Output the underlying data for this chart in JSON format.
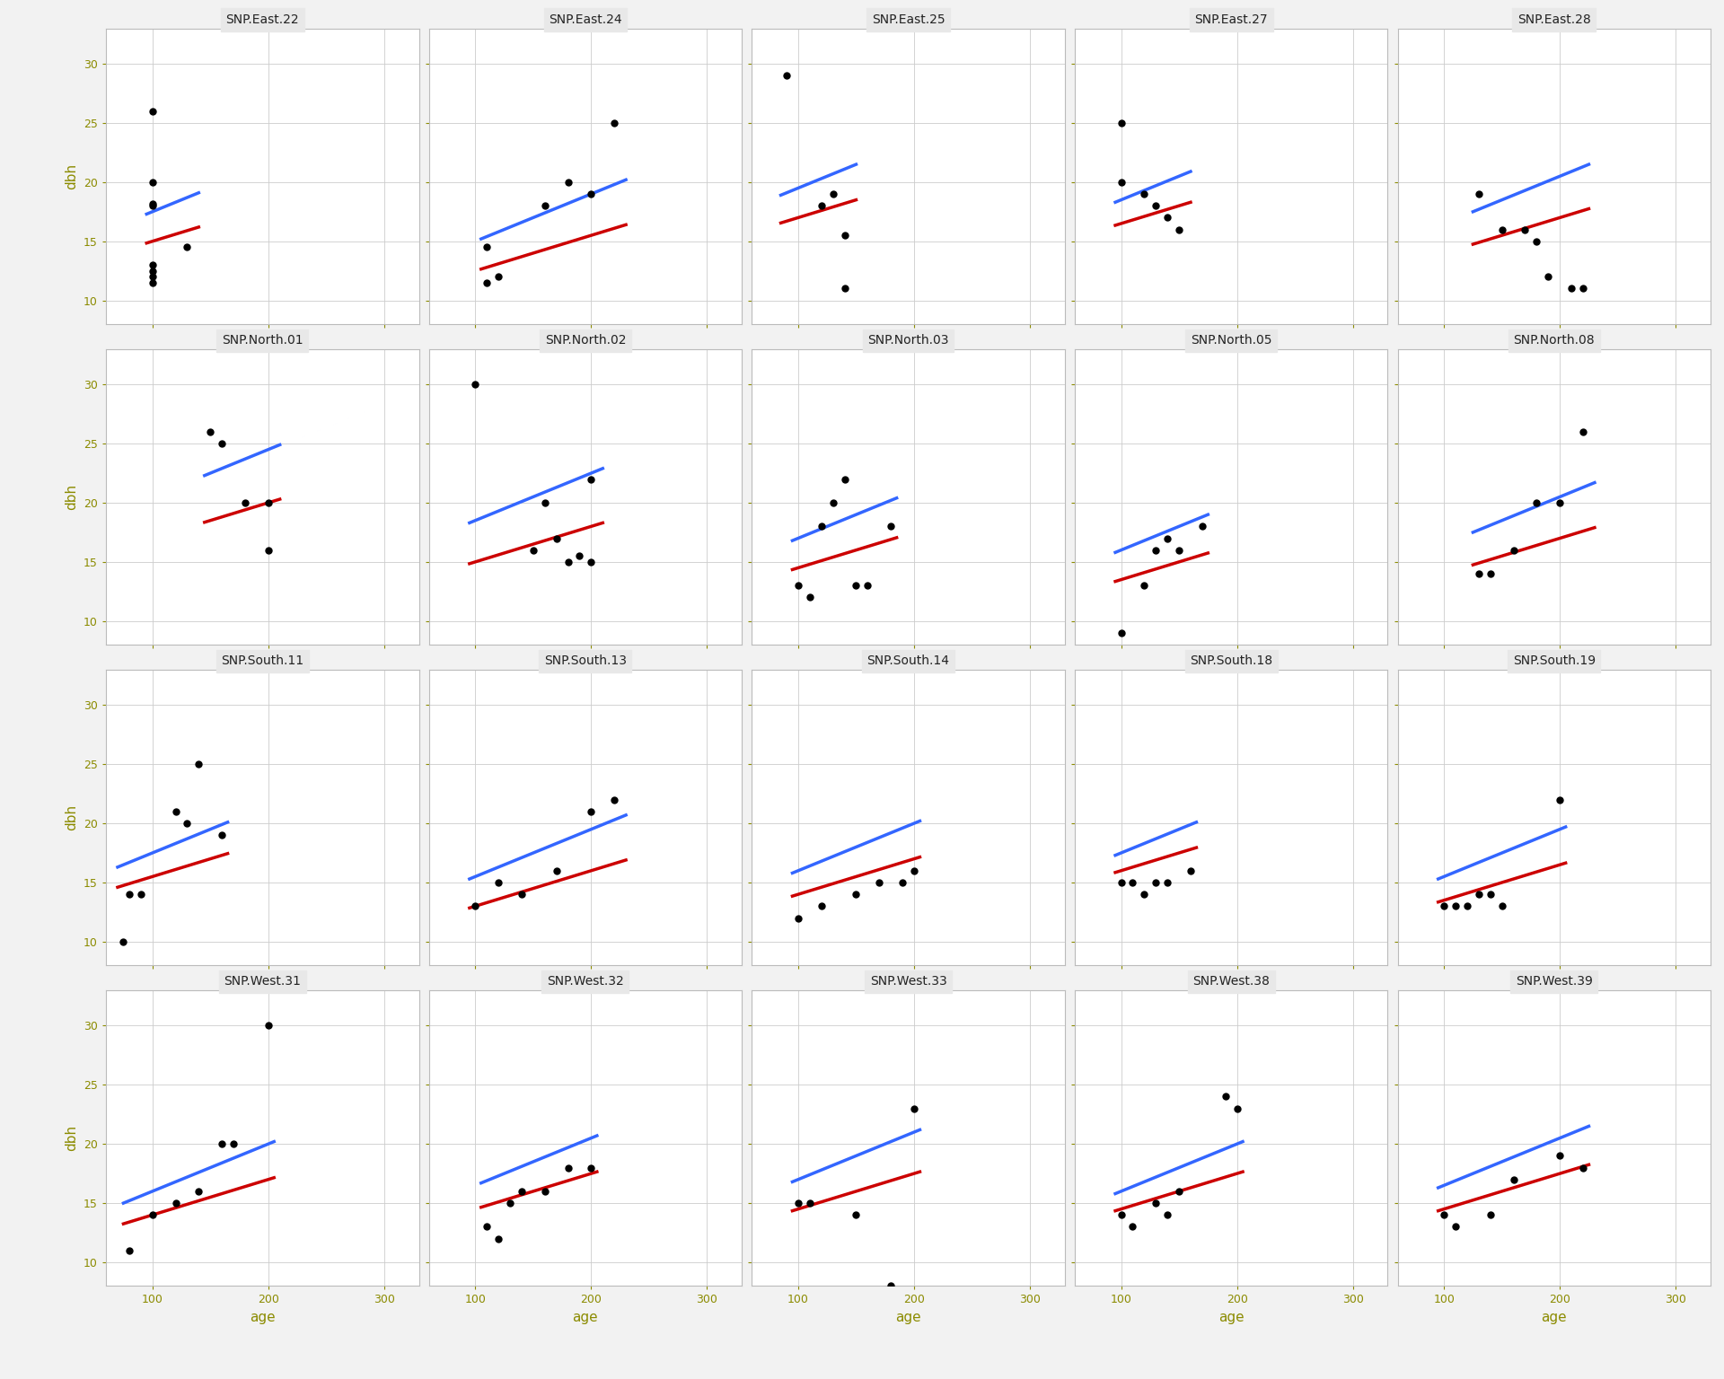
{
  "panels": [
    {
      "title": "SNP.East.22",
      "points": [
        [
          100,
          26
        ],
        [
          100,
          20
        ],
        [
          100,
          18.2
        ],
        [
          100,
          18
        ],
        [
          100,
          13
        ],
        [
          100,
          12.5
        ],
        [
          100,
          12
        ],
        [
          100,
          11.5
        ],
        [
          130,
          14.5
        ]
      ],
      "age_range": [
        95,
        140
      ]
    },
    {
      "title": "SNP.East.24",
      "points": [
        [
          110,
          14.5
        ],
        [
          110,
          11.5
        ],
        [
          120,
          12
        ],
        [
          160,
          18
        ],
        [
          180,
          20
        ],
        [
          200,
          19
        ],
        [
          220,
          25
        ]
      ],
      "age_range": [
        105,
        230
      ]
    },
    {
      "title": "SNP.East.25",
      "points": [
        [
          90,
          29
        ],
        [
          120,
          18
        ],
        [
          130,
          19
        ],
        [
          140,
          15.5
        ],
        [
          140,
          11
        ]
      ],
      "age_range": [
        85,
        150
      ]
    },
    {
      "title": "SNP.East.27",
      "points": [
        [
          100,
          25
        ],
        [
          100,
          20
        ],
        [
          120,
          19
        ],
        [
          130,
          18
        ],
        [
          140,
          17
        ],
        [
          150,
          16
        ]
      ],
      "age_range": [
        95,
        160
      ]
    },
    {
      "title": "SNP.East.28",
      "points": [
        [
          130,
          19
        ],
        [
          150,
          16
        ],
        [
          170,
          16
        ],
        [
          180,
          15
        ],
        [
          190,
          12
        ],
        [
          210,
          11
        ],
        [
          220,
          11
        ]
      ],
      "age_range": [
        125,
        225
      ]
    },
    {
      "title": "SNP.North.01",
      "points": [
        [
          150,
          26
        ],
        [
          160,
          25
        ],
        [
          180,
          20
        ],
        [
          200,
          20
        ],
        [
          200,
          16
        ]
      ],
      "age_range": [
        145,
        210
      ]
    },
    {
      "title": "SNP.North.02",
      "points": [
        [
          100,
          30
        ],
        [
          150,
          16
        ],
        [
          160,
          20
        ],
        [
          170,
          17
        ],
        [
          180,
          15
        ],
        [
          190,
          15.5
        ],
        [
          200,
          22
        ],
        [
          200,
          15
        ]
      ],
      "age_range": [
        95,
        210
      ]
    },
    {
      "title": "SNP.North.03",
      "points": [
        [
          100,
          13
        ],
        [
          110,
          12
        ],
        [
          120,
          18
        ],
        [
          130,
          20
        ],
        [
          140,
          22
        ],
        [
          150,
          13
        ],
        [
          160,
          13
        ],
        [
          180,
          18
        ]
      ],
      "age_range": [
        95,
        185
      ]
    },
    {
      "title": "SNP.North.05",
      "points": [
        [
          100,
          9
        ],
        [
          120,
          13
        ],
        [
          130,
          16
        ],
        [
          140,
          17
        ],
        [
          150,
          16
        ],
        [
          170,
          18
        ]
      ],
      "age_range": [
        95,
        175
      ]
    },
    {
      "title": "SNP.North.08",
      "points": [
        [
          130,
          14
        ],
        [
          140,
          14
        ],
        [
          160,
          16
        ],
        [
          180,
          20
        ],
        [
          200,
          20
        ],
        [
          220,
          26
        ]
      ],
      "age_range": [
        125,
        230
      ]
    },
    {
      "title": "SNP.South.11",
      "points": [
        [
          75,
          10
        ],
        [
          80,
          14
        ],
        [
          90,
          14
        ],
        [
          120,
          21
        ],
        [
          130,
          20
        ],
        [
          140,
          25
        ],
        [
          160,
          19
        ]
      ],
      "age_range": [
        70,
        165
      ]
    },
    {
      "title": "SNP.South.13",
      "points": [
        [
          100,
          13
        ],
        [
          120,
          15
        ],
        [
          140,
          14
        ],
        [
          170,
          16
        ],
        [
          200,
          21
        ],
        [
          220,
          22
        ]
      ],
      "age_range": [
        95,
        230
      ]
    },
    {
      "title": "SNP.South.14",
      "points": [
        [
          100,
          12
        ],
        [
          120,
          13
        ],
        [
          150,
          14
        ],
        [
          170,
          15
        ],
        [
          190,
          15
        ],
        [
          200,
          16
        ]
      ],
      "age_range": [
        95,
        205
      ]
    },
    {
      "title": "SNP.South.18",
      "points": [
        [
          100,
          15
        ],
        [
          110,
          15
        ],
        [
          120,
          14
        ],
        [
          130,
          15
        ],
        [
          140,
          15
        ],
        [
          160,
          16
        ]
      ],
      "age_range": [
        95,
        165
      ]
    },
    {
      "title": "SNP.South.19",
      "points": [
        [
          100,
          13
        ],
        [
          110,
          13
        ],
        [
          120,
          13
        ],
        [
          130,
          14
        ],
        [
          140,
          14
        ],
        [
          150,
          13
        ],
        [
          200,
          22
        ]
      ],
      "age_range": [
        95,
        205
      ]
    },
    {
      "title": "SNP.West.31",
      "points": [
        [
          80,
          11
        ],
        [
          100,
          14
        ],
        [
          120,
          15
        ],
        [
          140,
          16
        ],
        [
          160,
          20
        ],
        [
          170,
          20
        ],
        [
          200,
          30
        ]
      ],
      "age_range": [
        75,
        205
      ]
    },
    {
      "title": "SNP.West.32",
      "points": [
        [
          110,
          13
        ],
        [
          120,
          12
        ],
        [
          130,
          15
        ],
        [
          140,
          16
        ],
        [
          160,
          16
        ],
        [
          180,
          18
        ],
        [
          200,
          18
        ]
      ],
      "age_range": [
        105,
        205
      ]
    },
    {
      "title": "SNP.West.33",
      "points": [
        [
          100,
          15
        ],
        [
          110,
          15
        ],
        [
          150,
          14
        ],
        [
          180,
          8
        ],
        [
          200,
          23
        ]
      ],
      "age_range": [
        95,
        205
      ]
    },
    {
      "title": "SNP.West.38",
      "points": [
        [
          100,
          14
        ],
        [
          110,
          13
        ],
        [
          130,
          15
        ],
        [
          140,
          14
        ],
        [
          150,
          16
        ],
        [
          190,
          24
        ],
        [
          200,
          23
        ]
      ],
      "age_range": [
        95,
        205
      ]
    },
    {
      "title": "SNP.West.39",
      "points": [
        [
          100,
          14
        ],
        [
          110,
          13
        ],
        [
          140,
          14
        ],
        [
          160,
          17
        ],
        [
          200,
          19
        ],
        [
          220,
          18
        ]
      ],
      "age_range": [
        95,
        225
      ]
    }
  ],
  "global_slope_blue": 0.04,
  "global_slope_red": 0.03,
  "panel_intercepts_blue": [
    13.5,
    11.0,
    15.5,
    14.5,
    12.5,
    16.5,
    14.5,
    13.0,
    12.0,
    12.5,
    13.5,
    11.5,
    12.0,
    13.5,
    11.5,
    12.0,
    12.5,
    13.0,
    12.0,
    12.5
  ],
  "panel_intercepts_red": [
    12.0,
    9.5,
    14.0,
    13.5,
    11.0,
    14.0,
    12.0,
    11.5,
    10.5,
    11.0,
    12.5,
    10.0,
    11.0,
    13.0,
    10.5,
    11.0,
    11.5,
    11.5,
    11.5,
    11.5
  ],
  "blue_color": "#3366FF",
  "red_color": "#CC0000",
  "point_color": "#000000",
  "background_panel": "#FFFFFF",
  "background_strip": "#E8E8E8",
  "grid_color": "#CCCCCC",
  "ylim": [
    8,
    33
  ],
  "xlim": [
    60,
    330
  ],
  "yticks": [
    10,
    15,
    20,
    25,
    30
  ],
  "xticks": [
    100,
    200,
    300
  ],
  "xlabel": "age",
  "ylabel": "dbh",
  "nrows": 4,
  "ncols": 5
}
